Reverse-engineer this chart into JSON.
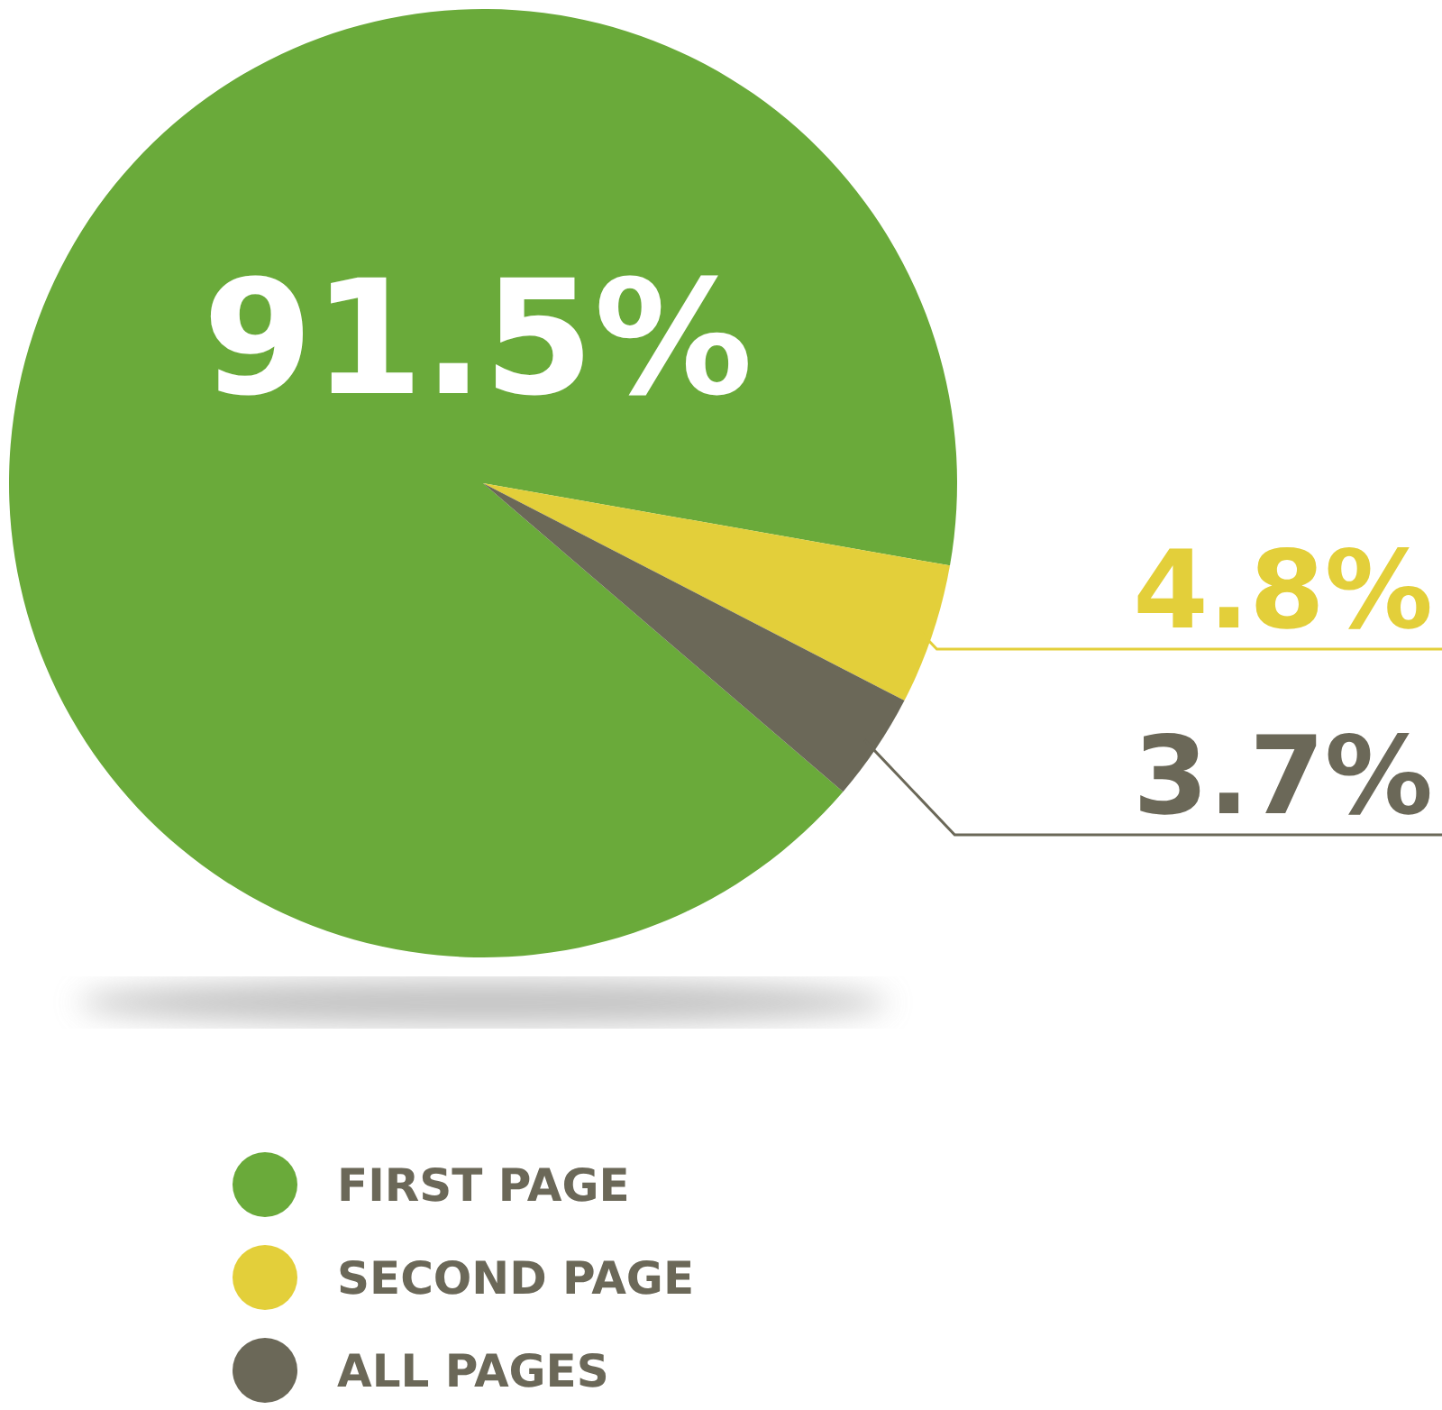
{
  "chart_data": {
    "type": "pie",
    "categories": [
      "FIRST PAGE",
      "SECOND PAGE",
      "ALL PAGES"
    ],
    "values": [
      91.5,
      4.8,
      3.7
    ],
    "colors": [
      "#6aaa3a",
      "#e3cf3a",
      "#6b6858"
    ],
    "value_labels": [
      "91.5%",
      "4.8%",
      "3.7%"
    ],
    "legend": "bottom"
  }
}
